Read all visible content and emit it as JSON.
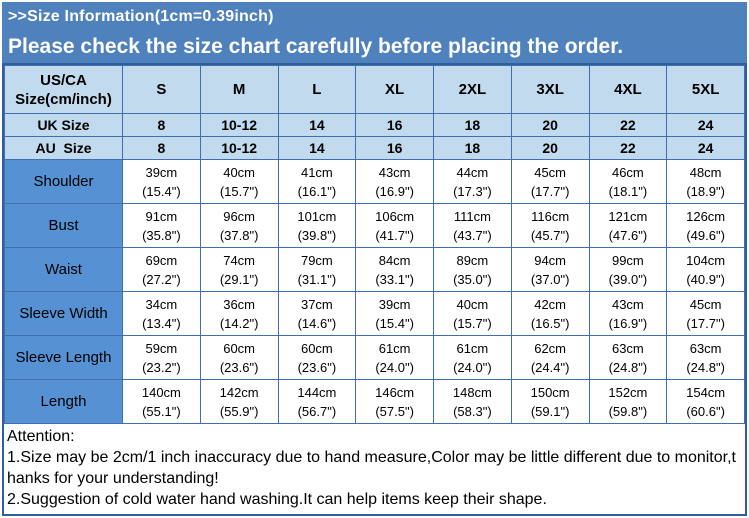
{
  "banner": {
    "title": ">>Size Information(1cm=0.39inch)",
    "subtitle": "Please check the size chart carefully before placing the order."
  },
  "colors": {
    "banner_bg": "#4f81bd",
    "banner_text": "#ffffff",
    "header_cell_bg": "#c2daee",
    "label_cell_bg": "#5591d3",
    "data_cell_bg": "#ffffff",
    "grid_line": "#3f6fae",
    "outer_border": "#2f5f9e",
    "body_text": "#000000"
  },
  "table": {
    "corner_header_line1": "US/CA",
    "corner_header_line2": "Size(cm/inch)",
    "size_columns": [
      "S",
      "M",
      "L",
      "XL",
      "2XL",
      "3XL",
      "4XL",
      "5XL"
    ],
    "size_rows": [
      {
        "label": "UK Size",
        "values": [
          "8",
          "10-12",
          "14",
          "16",
          "18",
          "20",
          "22",
          "24"
        ]
      },
      {
        "label": "AU  Size",
        "values": [
          "8",
          "10-12",
          "14",
          "16",
          "18",
          "20",
          "22",
          "24"
        ]
      }
    ],
    "measure_rows": [
      {
        "label": "Shoulder",
        "cm": [
          "39cm",
          "40cm",
          "41cm",
          "43cm",
          "44cm",
          "45cm",
          "46cm",
          "48cm"
        ],
        "inch": [
          "(15.4\")",
          "(15.7\")",
          "(16.1\")",
          "(16.9\")",
          "(17.3\")",
          "(17.7\")",
          "(18.1\")",
          "(18.9\")"
        ]
      },
      {
        "label": "Bust",
        "cm": [
          "91cm",
          "96cm",
          "101cm",
          "106cm",
          "111cm",
          "116cm",
          "121cm",
          "126cm"
        ],
        "inch": [
          "(35.8\")",
          "(37.8\")",
          "(39.8\")",
          "(41.7\")",
          "(43.7\")",
          "(45.7\")",
          "(47.6\")",
          "(49.6\")"
        ]
      },
      {
        "label": "Waist",
        "cm": [
          "69cm",
          "74cm",
          "79cm",
          "84cm",
          "89cm",
          "94cm",
          "99cm",
          "104cm"
        ],
        "inch": [
          "(27.2\")",
          "(29.1\")",
          "(31.1\")",
          "(33.1\")",
          "(35.0\")",
          "(37.0\")",
          "(39.0\")",
          "(40.9\")"
        ]
      },
      {
        "label": "Sleeve Width",
        "cm": [
          "34cm",
          "36cm",
          "37cm",
          "39cm",
          "40cm",
          "42cm",
          "43cm",
          "45cm"
        ],
        "inch": [
          "(13.4\")",
          "(14.2\")",
          "(14.6\")",
          "(15.4\")",
          "(15.7\")",
          "(16.5\")",
          "(16.9\")",
          "(17.7\")"
        ]
      },
      {
        "label": "Sleeve Length",
        "cm": [
          "59cm",
          "60cm",
          "60cm",
          "61cm",
          "61cm",
          "62cm",
          "63cm",
          "63cm"
        ],
        "inch": [
          "(23.2\")",
          "(23.6\")",
          "(23.6\")",
          "(24.0\")",
          "(24.0\")",
          "(24.4\")",
          "(24.8\")",
          "(24.8\")"
        ]
      },
      {
        "label": "Length",
        "cm": [
          "140cm",
          "142cm",
          "144cm",
          "146cm",
          "148cm",
          "150cm",
          "152cm",
          "154cm"
        ],
        "inch": [
          "(55.1\")",
          "(55.9\")",
          "(56.7\")",
          "(57.5\")",
          "(58.3\")",
          "(59.1\")",
          "(59.8\")",
          "(60.6\")"
        ]
      }
    ]
  },
  "attention": {
    "lines": [
      "Attention:",
      "1.Size may be 2cm/1 inch inaccuracy due to hand measure,Color may be little different due to monitor,t",
      "hanks for your understanding!",
      "2.Suggestion of cold water hand washing.It can help items keep their shape."
    ]
  }
}
